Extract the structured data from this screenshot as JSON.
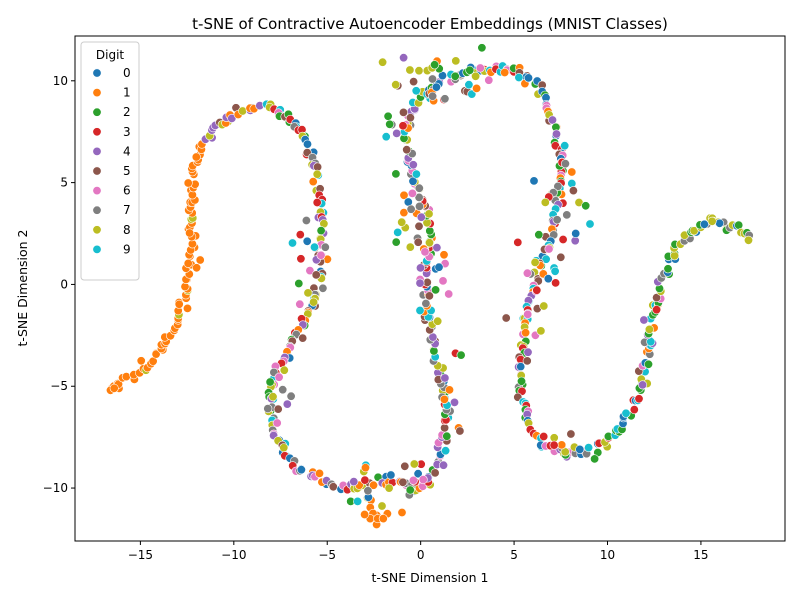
{
  "chart_data": {
    "type": "scatter",
    "title": "t-SNE of Contractive Autoencoder Embeddings (MNIST Classes)",
    "xlabel": "t-SNE Dimension 1",
    "ylabel": "t-SNE Dimension 2",
    "xlim": [
      -18.5,
      19.5
    ],
    "ylim": [
      -12.6,
      12.2
    ],
    "xticks": [
      -15,
      -10,
      -5,
      0,
      5,
      10,
      15
    ],
    "yticks": [
      -10,
      -5,
      0,
      5,
      10
    ],
    "grid": false,
    "legend": {
      "title": "Digit",
      "placement": "top-left"
    },
    "series": [
      {
        "name": "0",
        "color": "#1f77b4"
      },
      {
        "name": "1",
        "color": "#ff7f0e"
      },
      {
        "name": "2",
        "color": "#2ca02c"
      },
      {
        "name": "3",
        "color": "#d62728"
      },
      {
        "name": "4",
        "color": "#9467bd"
      },
      {
        "name": "5",
        "color": "#8c564b"
      },
      {
        "name": "6",
        "color": "#e377c2"
      },
      {
        "name": "7",
        "color": "#7f7f7f"
      },
      {
        "name": "8",
        "color": "#bcbd22"
      },
      {
        "name": "9",
        "color": "#17becf"
      }
    ],
    "curve_path": [
      [
        -16.7,
        -5.2
      ],
      [
        -16.0,
        -4.9
      ],
      [
        -15.0,
        -4.2
      ],
      [
        -14.0,
        -3.3
      ],
      [
        -13.3,
        -2.3
      ],
      [
        -12.8,
        -1.2
      ],
      [
        -12.5,
        0.0
      ],
      [
        -12.3,
        1.5
      ],
      [
        -12.3,
        3.2
      ],
      [
        -12.2,
        4.8
      ],
      [
        -12.0,
        6.0
      ],
      [
        -11.5,
        7.0
      ],
      [
        -10.8,
        7.8
      ],
      [
        -10.0,
        8.4
      ],
      [
        -9.2,
        8.7
      ],
      [
        -8.4,
        8.7
      ],
      [
        -7.6,
        8.4
      ],
      [
        -6.8,
        7.9
      ],
      [
        -6.2,
        7.2
      ],
      [
        -5.9,
        6.4
      ],
      [
        -5.6,
        5.4
      ],
      [
        -5.4,
        4.2
      ],
      [
        -5.3,
        3.0
      ],
      [
        -5.3,
        1.8
      ],
      [
        -5.3,
        0.6
      ],
      [
        -5.6,
        -0.5
      ],
      [
        -6.1,
        -1.5
      ],
      [
        -6.6,
        -2.3
      ],
      [
        -7.1,
        -3.2
      ],
      [
        -7.6,
        -4.1
      ],
      [
        -8.0,
        -5.0
      ],
      [
        -8.1,
        -5.8
      ],
      [
        -8.0,
        -6.7
      ],
      [
        -7.7,
        -7.6
      ],
      [
        -7.2,
        -8.4
      ],
      [
        -6.6,
        -8.9
      ],
      [
        -5.8,
        -9.4
      ],
      [
        -5.0,
        -9.8
      ],
      [
        -4.2,
        -10.0
      ],
      [
        -3.4,
        -10.0
      ],
      [
        -2.6,
        -9.8
      ],
      [
        -1.9,
        -9.6
      ],
      [
        -1.2,
        -9.8
      ],
      [
        -0.4,
        -10.1
      ],
      [
        0.3,
        -9.8
      ],
      [
        0.8,
        -9.1
      ],
      [
        1.1,
        -8.2
      ],
      [
        1.3,
        -7.2
      ],
      [
        1.4,
        -6.2
      ],
      [
        1.3,
        -5.2
      ],
      [
        1.1,
        -4.2
      ],
      [
        0.8,
        -3.2
      ],
      [
        0.5,
        -2.2
      ],
      [
        0.3,
        -1.1
      ],
      [
        0.3,
        0.0
      ],
      [
        0.4,
        1.1
      ],
      [
        0.5,
        2.2
      ],
      [
        0.4,
        3.3
      ],
      [
        0.1,
        4.3
      ],
      [
        -0.3,
        5.3
      ],
      [
        -0.6,
        6.3
      ],
      [
        -0.8,
        7.3
      ],
      [
        -0.6,
        8.3
      ],
      [
        -0.1,
        9.1
      ],
      [
        0.6,
        9.7
      ],
      [
        1.5,
        10.1
      ],
      [
        2.5,
        10.4
      ],
      [
        3.5,
        10.5
      ],
      [
        4.5,
        10.6
      ],
      [
        5.4,
        10.4
      ],
      [
        6.1,
        9.9
      ],
      [
        6.6,
        9.2
      ],
      [
        7.0,
        8.3
      ],
      [
        7.3,
        7.3
      ],
      [
        7.5,
        6.3
      ],
      [
        7.6,
        5.3
      ],
      [
        7.5,
        4.3
      ],
      [
        7.2,
        3.3
      ],
      [
        6.9,
        2.3
      ],
      [
        6.5,
        1.3
      ],
      [
        6.1,
        0.3
      ],
      [
        5.8,
        -0.7
      ],
      [
        5.6,
        -1.7
      ],
      [
        5.5,
        -2.7
      ],
      [
        5.4,
        -3.7
      ],
      [
        5.4,
        -4.7
      ],
      [
        5.5,
        -5.7
      ],
      [
        5.7,
        -6.6
      ],
      [
        6.1,
        -7.4
      ],
      [
        6.7,
        -8.0
      ],
      [
        7.5,
        -8.3
      ],
      [
        8.3,
        -8.4
      ],
      [
        9.1,
        -8.1
      ],
      [
        9.9,
        -7.7
      ],
      [
        10.6,
        -7.1
      ],
      [
        11.2,
        -6.3
      ],
      [
        11.6,
        -5.4
      ],
      [
        11.9,
        -4.4
      ],
      [
        12.2,
        -3.4
      ],
      [
        12.3,
        -2.4
      ],
      [
        12.5,
        -1.4
      ],
      [
        12.8,
        -0.4
      ],
      [
        13.1,
        0.6
      ],
      [
        13.5,
        1.5
      ],
      [
        14.0,
        2.2
      ],
      [
        14.6,
        2.7
      ],
      [
        15.3,
        3.0
      ],
      [
        16.1,
        3.0
      ],
      [
        16.9,
        2.8
      ],
      [
        17.8,
        2.1
      ]
    ],
    "loose_clusters": [
      {
        "x": 0.6,
        "y": 9.9,
        "sx": 1.4,
        "sy": 0.6,
        "n": 20
      },
      {
        "x": -1.2,
        "y": 7.6,
        "sx": 0.4,
        "sy": 0.4,
        "n": 10
      },
      {
        "x": -0.4,
        "y": 4.0,
        "sx": 0.5,
        "sy": 1.5,
        "n": 22
      },
      {
        "x": 0.7,
        "y": 1.0,
        "sx": 0.6,
        "sy": 1.4,
        "n": 18
      },
      {
        "x": -0.4,
        "y": -9.8,
        "sx": 0.8,
        "sy": 0.7,
        "n": 14
      },
      {
        "x": -2.7,
        "y": -10.8,
        "sx": 0.6,
        "sy": 0.5,
        "n": 10
      },
      {
        "x": 3.2,
        "y": 10.4,
        "sx": 1.6,
        "sy": 0.4,
        "n": 14
      },
      {
        "x": 8.0,
        "y": 4.4,
        "sx": 0.6,
        "sy": 1.3,
        "n": 18
      },
      {
        "x": 6.5,
        "y": 1.5,
        "sx": 0.6,
        "sy": 1.4,
        "n": 14
      },
      {
        "x": 6.3,
        "y": -1.2,
        "sx": 0.6,
        "sy": 1.0,
        "n": 10
      },
      {
        "x": -6.0,
        "y": 1.2,
        "sx": 0.6,
        "sy": 1.8,
        "n": 16
      },
      {
        "x": -7.6,
        "y": -5.5,
        "sx": 0.5,
        "sy": 0.6,
        "n": 10
      },
      {
        "x": -3.0,
        "y": -9.6,
        "sx": 0.5,
        "sy": 0.5,
        "n": 8
      },
      {
        "x": 8.0,
        "y": -8.3,
        "sx": 0.7,
        "sy": 0.4,
        "n": 10
      },
      {
        "x": 12.3,
        "y": -3.0,
        "sx": 0.3,
        "sy": 1.3,
        "n": 10
      },
      {
        "x": 1.5,
        "y": -5.2,
        "sx": 0.4,
        "sy": 1.0,
        "n": 10
      }
    ],
    "outliers": [
      [
        -2.7,
        -11.5
      ],
      [
        -2.3,
        -11.5
      ],
      [
        -2.0,
        -11.5
      ],
      [
        -3.0,
        -11.3
      ],
      [
        -16.6,
        -5.2
      ],
      [
        -16.4,
        -5.1
      ],
      [
        16.0,
        3.0
      ],
      [
        15.6,
        3.1
      ],
      [
        -11.8,
        1.2
      ],
      [
        -1.0,
        -11.2
      ],
      [
        2.1,
        -7.2
      ],
      [
        8.3,
        2.5
      ]
    ]
  }
}
